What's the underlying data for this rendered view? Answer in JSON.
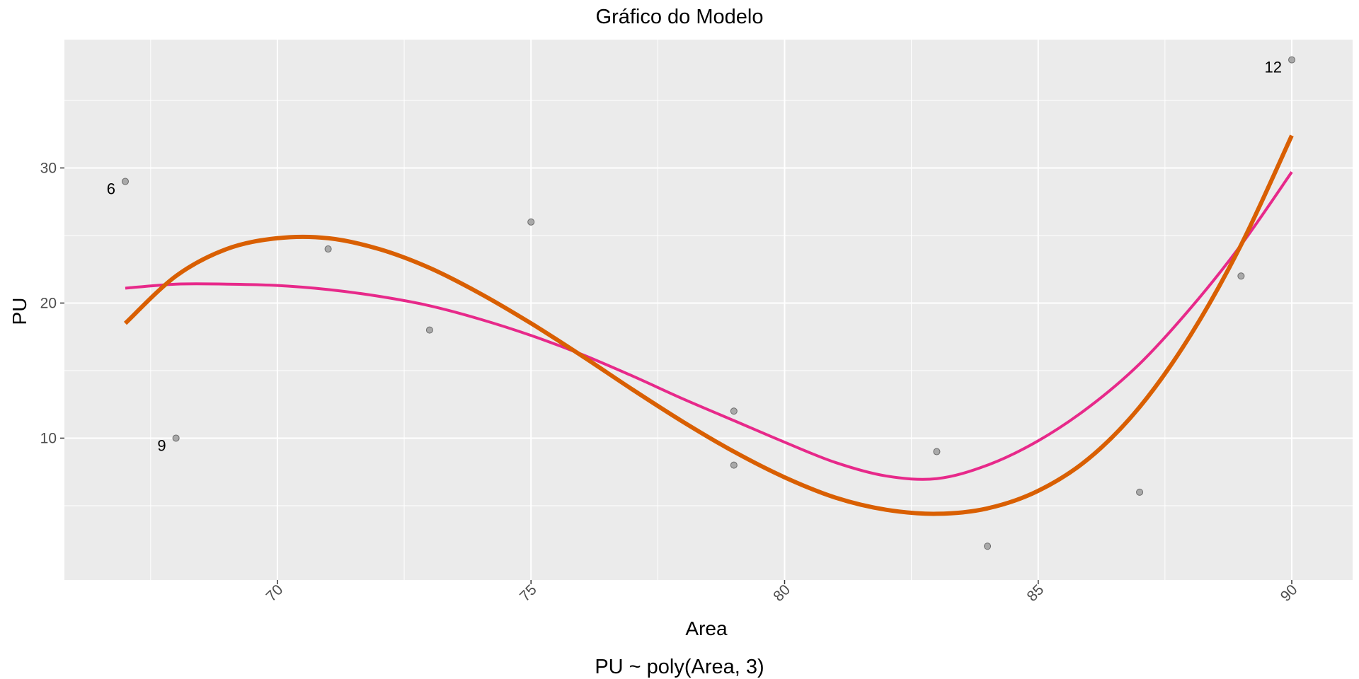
{
  "chart_data": {
    "type": "scatter",
    "title": "Gráfico do Modelo",
    "xlabel": "Area",
    "ylabel": "PU",
    "caption": "PU ~ poly(Area, 3)",
    "xlim": [
      65.8,
      91.2
    ],
    "ylim": [
      -0.5,
      39.5
    ],
    "x_ticks": [
      70,
      75,
      80,
      85,
      90
    ],
    "x_tick_labels": [
      "70",
      "75",
      "80",
      "85",
      "90"
    ],
    "x_minor_ticks": [
      67.5,
      72.5,
      77.5,
      82.5,
      87.5
    ],
    "y_ticks": [
      10,
      20,
      30
    ],
    "y_tick_labels": [
      "10",
      "20",
      "30"
    ],
    "y_minor_ticks": [
      5,
      15,
      25,
      35
    ],
    "grid": true,
    "panel_background": "#ebebeb",
    "points": [
      {
        "x": 67,
        "y": 29,
        "label": "6"
      },
      {
        "x": 68,
        "y": 10,
        "label": "9"
      },
      {
        "x": 71,
        "y": 24
      },
      {
        "x": 73,
        "y": 18
      },
      {
        "x": 75,
        "y": 26
      },
      {
        "x": 79,
        "y": 12
      },
      {
        "x": 79,
        "y": 8
      },
      {
        "x": 83,
        "y": 9
      },
      {
        "x": 84,
        "y": 2
      },
      {
        "x": 87,
        "y": 6
      },
      {
        "x": 89,
        "y": 22
      },
      {
        "x": 90,
        "y": 38,
        "label": "12"
      }
    ],
    "series": [
      {
        "color": "#e7298a",
        "x": [
          67,
          68,
          69,
          70,
          71,
          72,
          73,
          74,
          75,
          76,
          77,
          78,
          79,
          80,
          81,
          82,
          83,
          84,
          85,
          86,
          87,
          88,
          89,
          90
        ],
        "y": [
          21.1,
          21.4,
          21.4,
          21.3,
          21.0,
          20.5,
          19.8,
          18.8,
          17.6,
          16.2,
          14.6,
          12.9,
          11.3,
          9.7,
          8.2,
          7.2,
          7.0,
          8.0,
          9.8,
          12.3,
          15.5,
          19.6,
          24.3,
          29.7
        ]
      },
      {
        "color": "#d95f02",
        "x": [
          67,
          68,
          69,
          70,
          71,
          72,
          73,
          74,
          75,
          76,
          77,
          78,
          79,
          80,
          81,
          82,
          83,
          84,
          85,
          86,
          87,
          88,
          89,
          90
        ],
        "y": [
          18.5,
          22.0,
          24.0,
          24.8,
          24.8,
          24.0,
          22.6,
          20.7,
          18.5,
          16.1,
          13.6,
          11.2,
          9.0,
          7.1,
          5.6,
          4.7,
          4.4,
          4.8,
          6.1,
          8.5,
          12.3,
          17.6,
          24.3,
          32.4
        ]
      }
    ]
  }
}
